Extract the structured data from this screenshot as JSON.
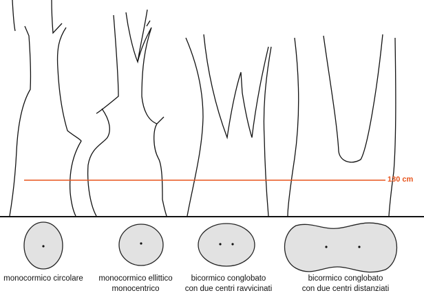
{
  "height_marker": {
    "label": "130 cm",
    "color": "#e8541c"
  },
  "types": [
    {
      "label": "monocormico circolare"
    },
    {
      "label": "monocormico ellittico",
      "label2": "monocentrico"
    },
    {
      "label": "bicormico conglobato",
      "label2": "con due centri ravvicinati"
    },
    {
      "label": "bicormico conglobato",
      "label2": "con due centri distanziati"
    }
  ]
}
